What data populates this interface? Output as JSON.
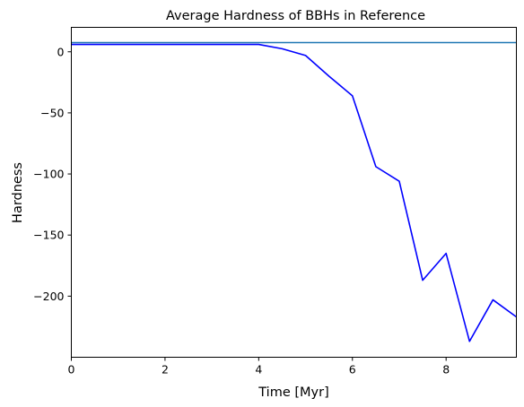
{
  "chart_data": {
    "type": "line",
    "title": "Average Hardness of BBHs in Reference",
    "xlabel": "Time [Myr]",
    "ylabel": "Hardness",
    "xlim": [
      0,
      9.5
    ],
    "ylim": [
      -250,
      20
    ],
    "xticks": [
      0,
      2,
      4,
      6,
      8
    ],
    "xtick_labels": [
      "0",
      "2",
      "4",
      "6",
      "8"
    ],
    "yticks": [
      0,
      -50,
      -100,
      -150,
      -200
    ],
    "ytick_labels": [
      "0",
      "−50",
      "−100",
      "−150",
      "−200"
    ],
    "grid": false,
    "legend": "none",
    "series": [
      {
        "kind": "line",
        "color": "#0000ff",
        "x": [
          0,
          0.5,
          1,
          1.5,
          2,
          2.5,
          3,
          3.5,
          4,
          4.5,
          5,
          5.5,
          6,
          6.5,
          7,
          7.5,
          8,
          8.5,
          9,
          9.5
        ],
        "y": [
          6,
          6,
          6,
          6,
          6,
          6,
          6,
          6,
          6,
          2.5,
          -3,
          -20,
          -36,
          -94,
          -106,
          -187,
          -165,
          -237,
          -203,
          -217
        ]
      },
      {
        "kind": "hline",
        "color": "#1f77b4",
        "y": 7.5
      }
    ]
  }
}
